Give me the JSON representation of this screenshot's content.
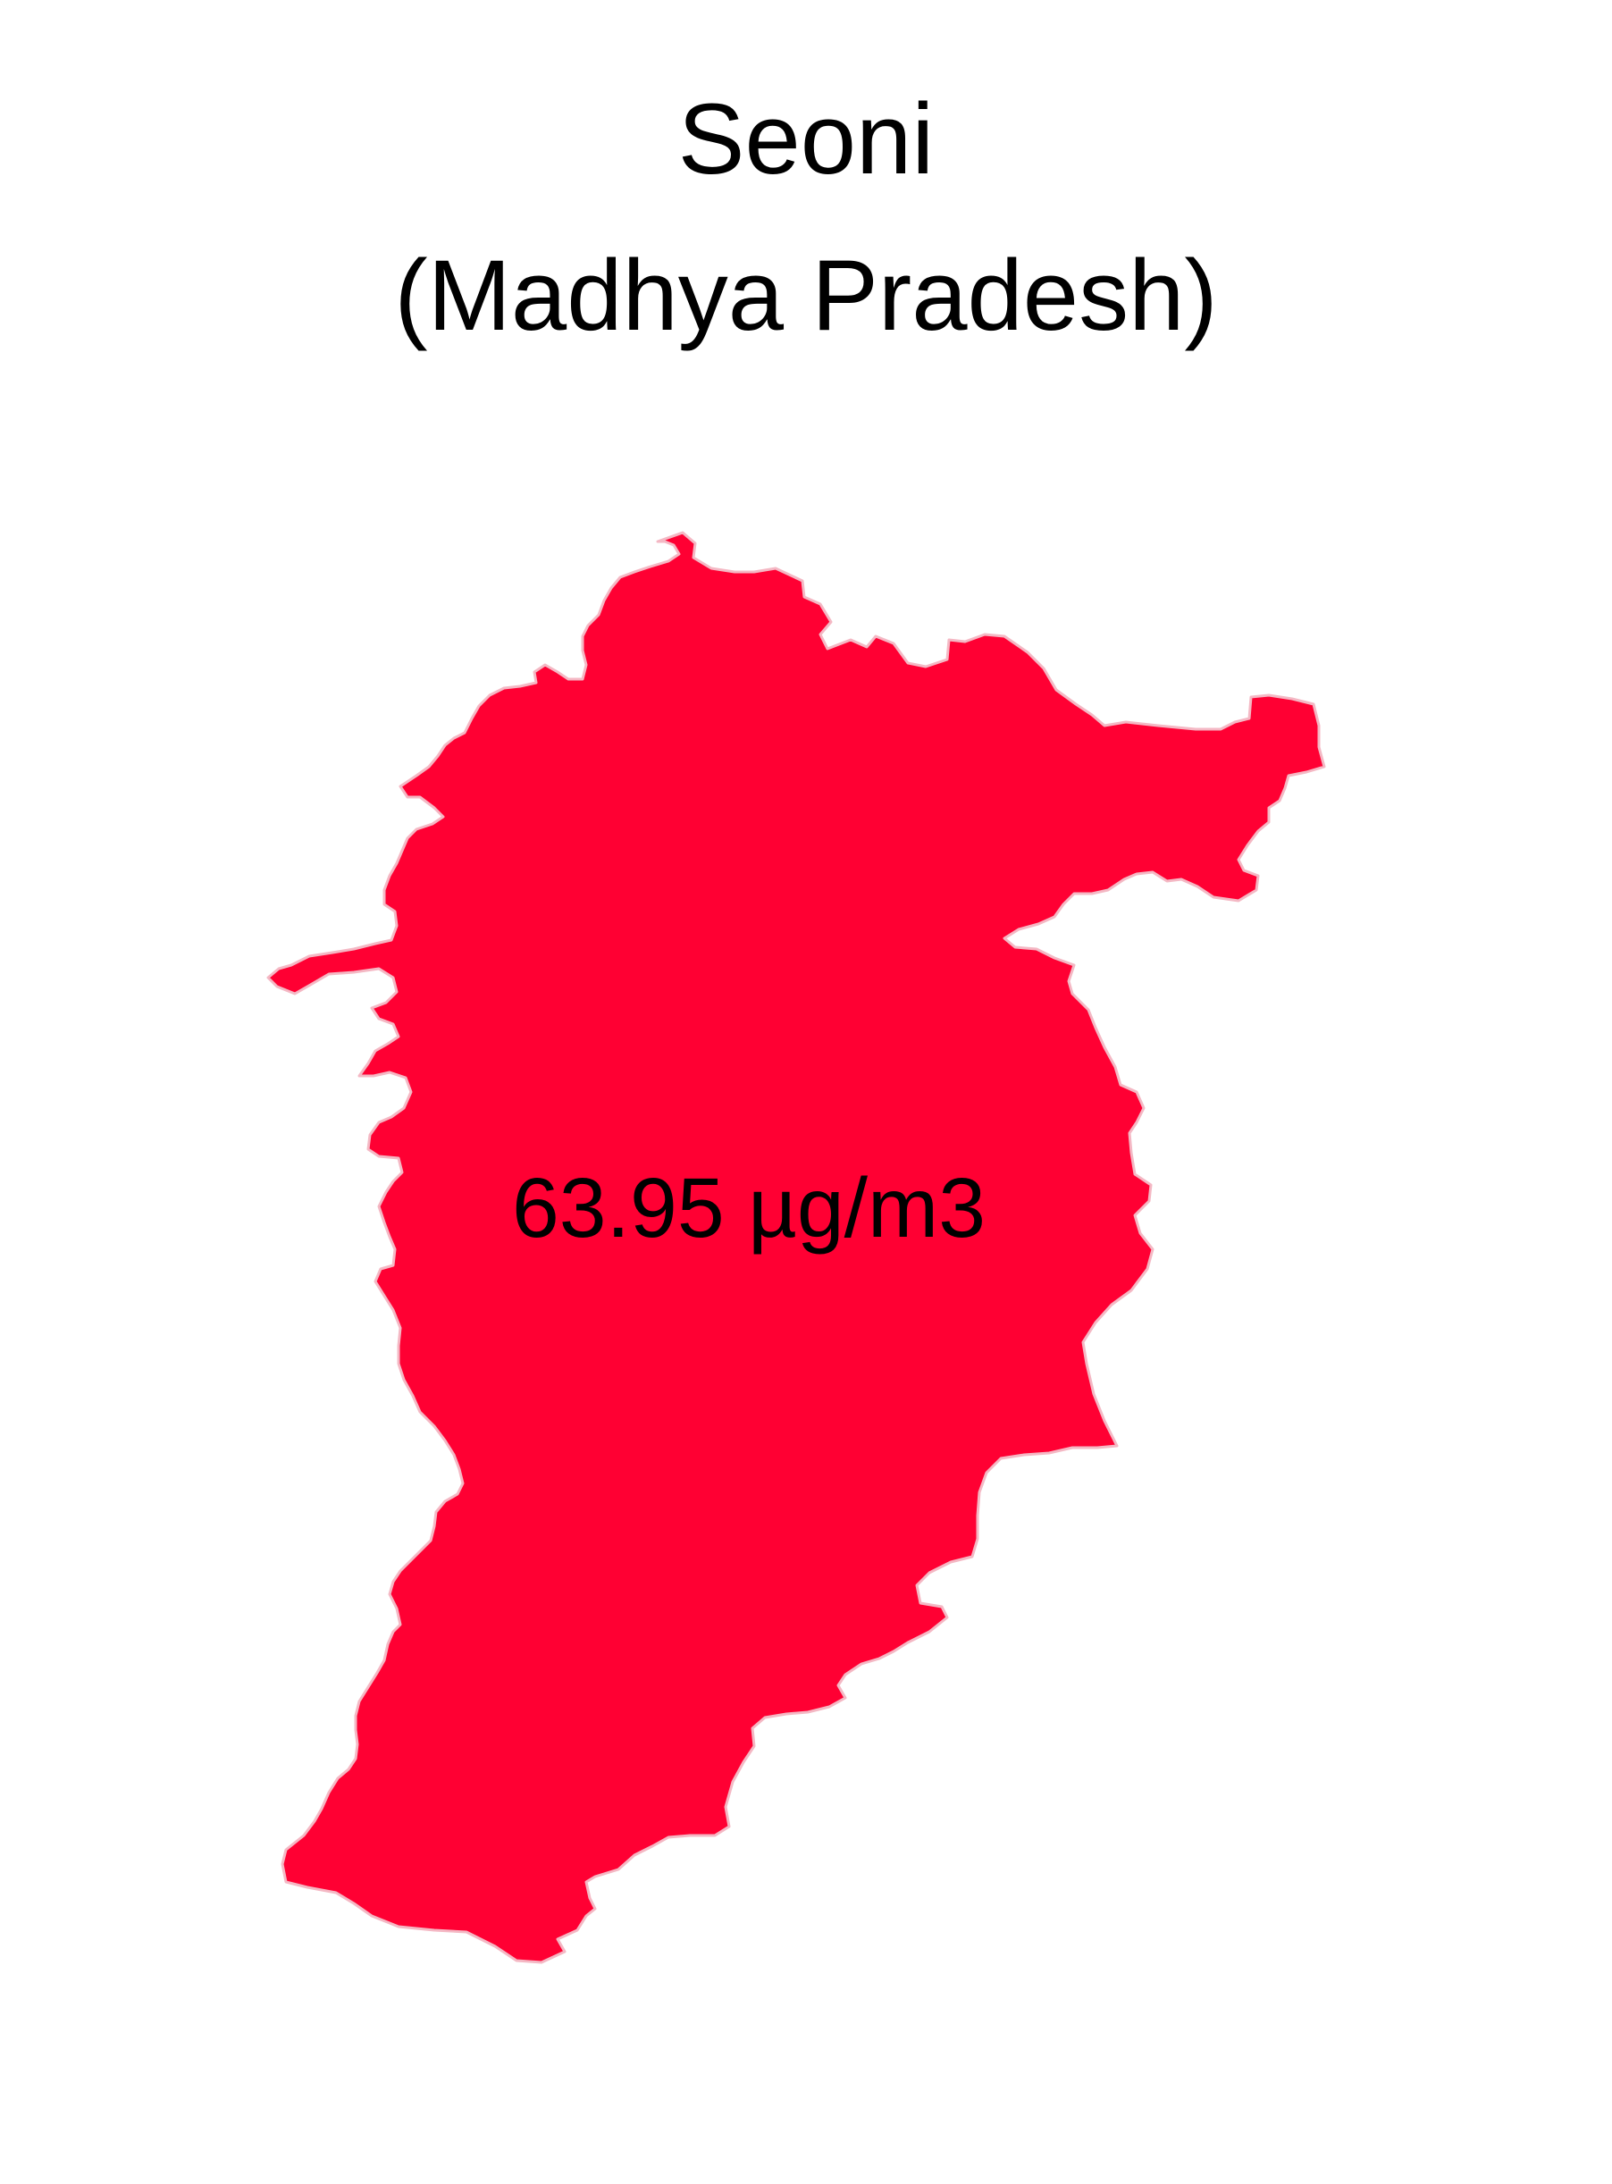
{
  "map": {
    "title_line1": "Seoni",
    "title_line2": "(Madhya Pradesh)",
    "region_value_label": "63.95 µg/m3",
    "region_fill_color": "#ff0033",
    "region_border_color": "#f4b8c4",
    "label_color": "#000000",
    "background_color": "#ffffff"
  }
}
